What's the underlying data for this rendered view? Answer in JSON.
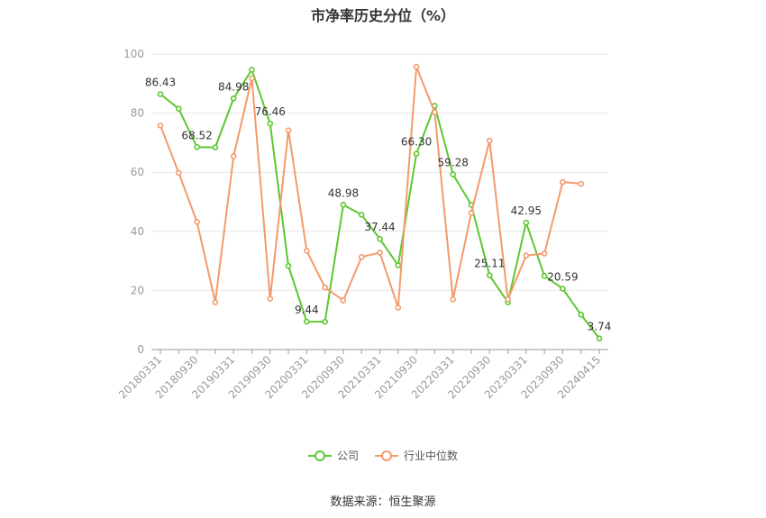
{
  "chart_data": {
    "type": "line",
    "title": "市净率历史分位（%）",
    "source": "数据来源：恒生聚源",
    "x_tick_labels": [
      "20180331",
      "20180930",
      "20190331",
      "20190930",
      "20200331",
      "20200930",
      "20210331",
      "20210930",
      "20220331",
      "20220930",
      "20230331",
      "20230930",
      "20240415"
    ],
    "ylim": [
      0,
      100
    ],
    "y_ticks": [
      0,
      20,
      40,
      60,
      80,
      100
    ],
    "grid": true,
    "legend_position": "bottom",
    "series": [
      {
        "name": "公司",
        "color": "#5ec731",
        "values": [
          86.43,
          81.5,
          68.52,
          68.4,
          84.98,
          94.7,
          76.46,
          28.3,
          9.44,
          9.4,
          48.98,
          45.6,
          37.44,
          28.5,
          66.3,
          82.5,
          59.28,
          49.0,
          25.11,
          16.0,
          42.95,
          24.9,
          20.59,
          11.8,
          3.74
        ],
        "labels": {
          "0": "86.43",
          "2": "68.52",
          "4": "84.98",
          "6": "76.46",
          "8": "9.44",
          "10": "48.98",
          "12": "37.44",
          "14": "66.30",
          "16": "59.28",
          "18": "25.11",
          "20": "42.95",
          "22": "20.59",
          "24": "3.74"
        }
      },
      {
        "name": "行业中位数",
        "color": "#f39a6d",
        "values": [
          75.8,
          59.8,
          43.2,
          16.0,
          65.4,
          91.8,
          17.2,
          74.2,
          33.4,
          21.0,
          16.6,
          31.3,
          32.8,
          14.2,
          95.7,
          80.3,
          17.0,
          46.2,
          70.7,
          17.0,
          31.8,
          32.5,
          56.7,
          56.1
        ]
      }
    ]
  }
}
